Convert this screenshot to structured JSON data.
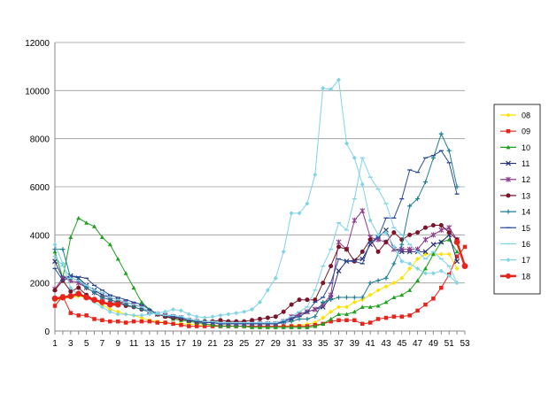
{
  "chart_data": {
    "type": "line",
    "title": "",
    "xlabel": "",
    "ylabel": "",
    "ylim": [
      0,
      12000
    ],
    "yticks": [
      0,
      2000,
      4000,
      6000,
      8000,
      10000,
      12000
    ],
    "xlim": [
      1,
      53
    ],
    "xticks": [
      1,
      3,
      5,
      7,
      9,
      11,
      13,
      15,
      17,
      19,
      21,
      23,
      25,
      27,
      29,
      31,
      33,
      35,
      37,
      39,
      41,
      43,
      45,
      47,
      49,
      51,
      53
    ],
    "grid": "horizontal",
    "legend_position": "right",
    "series": [
      {
        "name": "08",
        "color": "#FFE000",
        "marker": "diamond",
        "width": 1,
        "values": [
          1300,
          1350,
          1400,
          1450,
          1400,
          1300,
          1100,
          900,
          800,
          700,
          650,
          550,
          450,
          400,
          350,
          300,
          300,
          280,
          260,
          250,
          240,
          230,
          220,
          210,
          200,
          200,
          200,
          200,
          200,
          200,
          220,
          240,
          280,
          350,
          550,
          800,
          1000,
          1000,
          1200,
          1300,
          1500,
          1700,
          1850,
          2000,
          2200,
          2600,
          3000,
          3200,
          3200,
          3200,
          3200,
          2600,
          null
        ]
      },
      {
        "name": "09",
        "color": "#E8231A",
        "marker": "square",
        "width": 1,
        "values": [
          1050,
          1450,
          750,
          650,
          650,
          500,
          450,
          400,
          400,
          350,
          400,
          400,
          400,
          350,
          350,
          300,
          250,
          200,
          200,
          200,
          200,
          200,
          200,
          200,
          200,
          200,
          200,
          200,
          200,
          200,
          200,
          200,
          200,
          250,
          300,
          400,
          450,
          450,
          450,
          300,
          350,
          500,
          550,
          600,
          600,
          650,
          850,
          1100,
          1350,
          1800,
          2350,
          3100,
          3500
        ]
      },
      {
        "name": "10",
        "color": "#1FA01F",
        "marker": "triangle",
        "width": 1,
        "values": [
          3300,
          2200,
          3900,
          4700,
          4500,
          4350,
          3900,
          3600,
          3000,
          2400,
          1800,
          1200,
          900,
          700,
          600,
          500,
          450,
          400,
          350,
          300,
          250,
          200,
          200,
          200,
          200,
          150,
          150,
          150,
          150,
          150,
          150,
          150,
          150,
          200,
          300,
          500,
          700,
          700,
          800,
          1000,
          1000,
          1050,
          1200,
          1400,
          1500,
          1700,
          2100,
          2600,
          3200,
          3700,
          3800,
          3300,
          null
        ]
      },
      {
        "name": "11",
        "color": "#25307A",
        "marker": "cross",
        "width": 1,
        "values": [
          2900,
          2200,
          2300,
          2200,
          1900,
          1700,
          1500,
          1400,
          1300,
          1200,
          1100,
          1000,
          800,
          700,
          650,
          600,
          550,
          450,
          400,
          350,
          350,
          300,
          300,
          300,
          300,
          300,
          300,
          300,
          300,
          400,
          500,
          700,
          800,
          900,
          1000,
          1400,
          2500,
          2900,
          2950,
          3000,
          3600,
          3900,
          4200,
          3400,
          3300,
          3300,
          3300,
          3300,
          3600,
          3700,
          4000,
          2900,
          null
        ]
      },
      {
        "name": "12",
        "color": "#8E3A8E",
        "marker": "star",
        "width": 1,
        "values": [
          1750,
          2200,
          2100,
          2000,
          1800,
          1600,
          1400,
          1300,
          1200,
          1200,
          1100,
          1000,
          800,
          700,
          650,
          600,
          550,
          450,
          400,
          350,
          350,
          300,
          300,
          300,
          300,
          300,
          300,
          300,
          300,
          400,
          600,
          700,
          800,
          900,
          1100,
          1500,
          3700,
          3400,
          4600,
          5000,
          3900,
          3800,
          3700,
          3400,
          3400,
          3400,
          3400,
          3800,
          4000,
          4200,
          4300,
          3800,
          null
        ]
      },
      {
        "name": "13",
        "color": "#7A1428",
        "marker": "circle",
        "width": 1,
        "values": [
          1700,
          2100,
          1650,
          1800,
          1500,
          1300,
          1200,
          1150,
          1200,
          1050,
          1000,
          900,
          800,
          700,
          600,
          550,
          500,
          450,
          400,
          400,
          400,
          450,
          400,
          400,
          400,
          450,
          500,
          550,
          600,
          800,
          1100,
          1300,
          1300,
          1300,
          2000,
          2700,
          3500,
          3400,
          2900,
          3300,
          3800,
          3300,
          3700,
          4100,
          3800,
          4000,
          4100,
          4300,
          4400,
          4400,
          4100,
          3800,
          null
        ]
      },
      {
        "name": "14",
        "color": "#1F7F90",
        "marker": "plus",
        "width": 1,
        "values": [
          3400,
          3400,
          2200,
          2100,
          1800,
          1600,
          1400,
          1300,
          1200,
          1100,
          1000,
          900,
          800,
          700,
          650,
          600,
          550,
          450,
          400,
          350,
          350,
          300,
          300,
          300,
          300,
          300,
          300,
          300,
          300,
          350,
          400,
          500,
          500,
          600,
          1200,
          1300,
          1400,
          1400,
          1400,
          1400,
          2000,
          2100,
          2200,
          2800,
          3600,
          5200,
          5500,
          6200,
          7200,
          8200,
          7500,
          6000,
          null
        ]
      },
      {
        "name": "15",
        "color": "#2C4C9A",
        "marker": "dash",
        "width": 1,
        "values": [
          2600,
          2100,
          2300,
          2250,
          2200,
          1900,
          1700,
          1500,
          1400,
          1300,
          1200,
          1100,
          900,
          700,
          650,
          600,
          550,
          450,
          400,
          350,
          350,
          300,
          300,
          300,
          300,
          300,
          300,
          300,
          300,
          400,
          500,
          600,
          800,
          1200,
          1400,
          2000,
          3000,
          2900,
          2900,
          2800,
          3700,
          3900,
          4700,
          4700,
          5500,
          6700,
          6600,
          7200,
          7300,
          7500,
          7000,
          5700,
          null
        ]
      },
      {
        "name": "16",
        "color": "#7FD4E6",
        "marker": "dash",
        "width": 1,
        "values": [
          3100,
          2700,
          2200,
          2100,
          1900,
          1700,
          1600,
          1400,
          1300,
          1200,
          1100,
          1000,
          800,
          700,
          650,
          650,
          600,
          500,
          450,
          400,
          400,
          350,
          350,
          350,
          350,
          350,
          350,
          350,
          350,
          450,
          600,
          800,
          1000,
          1700,
          2700,
          3400,
          4500,
          4200,
          5500,
          7200,
          6400,
          5900,
          5300,
          4300,
          4000,
          3600,
          3300,
          3000,
          3300,
          3000,
          2700,
          2000,
          null
        ]
      },
      {
        "name": "17",
        "color": "#7FD4E6",
        "marker": "diamond",
        "width": 1,
        "values": [
          3600,
          2800,
          1800,
          1500,
          1400,
          1200,
          1000,
          800,
          700,
          700,
          650,
          650,
          700,
          750,
          800,
          900,
          850,
          700,
          600,
          550,
          600,
          650,
          700,
          750,
          800,
          900,
          1200,
          1700,
          2200,
          3300,
          4900,
          4900,
          5300,
          6500,
          10100,
          10050,
          10450,
          7800,
          7200,
          6100,
          4600,
          4000,
          4100,
          3500,
          2900,
          2800,
          2600,
          2400,
          2400,
          2500,
          2300,
          2000,
          null
        ]
      },
      {
        "name": "18",
        "color": "#E8231A",
        "marker": "circle",
        "width": 2.5,
        "values": [
          1350,
          1400,
          1450,
          1550,
          1400,
          1300,
          1200,
          1100,
          1100,
          null,
          null,
          null,
          null,
          null,
          null,
          null,
          null,
          null,
          null,
          null,
          null,
          null,
          null,
          null,
          null,
          null,
          null,
          null,
          null,
          null,
          null,
          null,
          null,
          null,
          null,
          null,
          null,
          null,
          null,
          null,
          null,
          null,
          null,
          null,
          null,
          null,
          null,
          null,
          null,
          null,
          null,
          3700,
          2700
        ]
      }
    ]
  }
}
